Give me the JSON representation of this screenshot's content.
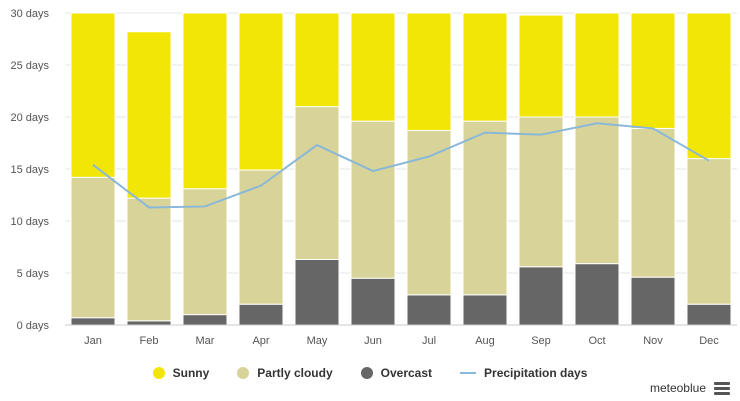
{
  "chart_data": {
    "type": "bar",
    "stacked": true,
    "categories": [
      "Jan",
      "Feb",
      "Mar",
      "Apr",
      "May",
      "Jun",
      "Jul",
      "Aug",
      "Sep",
      "Oct",
      "Nov",
      "Dec"
    ],
    "series": [
      {
        "name": "Overcast",
        "kind": "bar",
        "color": "#666666",
        "values": [
          0.7,
          0.4,
          1.0,
          2.0,
          6.3,
          4.5,
          2.9,
          2.9,
          5.6,
          5.9,
          4.6,
          2.0
        ]
      },
      {
        "name": "Partly cloudy",
        "kind": "bar",
        "color": "#d8d398",
        "values": [
          13.5,
          11.8,
          12.1,
          12.9,
          14.7,
          15.1,
          15.8,
          16.7,
          14.4,
          14.1,
          14.3,
          14.0
        ]
      },
      {
        "name": "Sunny",
        "kind": "bar",
        "color": "#f2e606",
        "values": [
          15.8,
          16.0,
          16.9,
          15.1,
          9.0,
          10.4,
          11.3,
          10.4,
          9.8,
          10.0,
          11.1,
          14.0
        ]
      },
      {
        "name": "Precipitation days",
        "kind": "line",
        "color": "#8ab8d8",
        "values": [
          15.4,
          11.3,
          11.4,
          13.4,
          17.3,
          14.8,
          16.2,
          18.5,
          18.3,
          19.4,
          18.9,
          15.8
        ]
      }
    ],
    "yticks": [
      "0 days",
      "5 days",
      "10 days",
      "15 days",
      "20 days",
      "25 days",
      "30 days"
    ],
    "ytick_values": [
      0,
      5,
      10,
      15,
      20,
      25,
      30
    ],
    "ylim": [
      0,
      30
    ],
    "legend": [
      "Sunny",
      "Partly cloudy",
      "Overcast",
      "Precipitation days"
    ]
  },
  "credit": "meteoblue"
}
